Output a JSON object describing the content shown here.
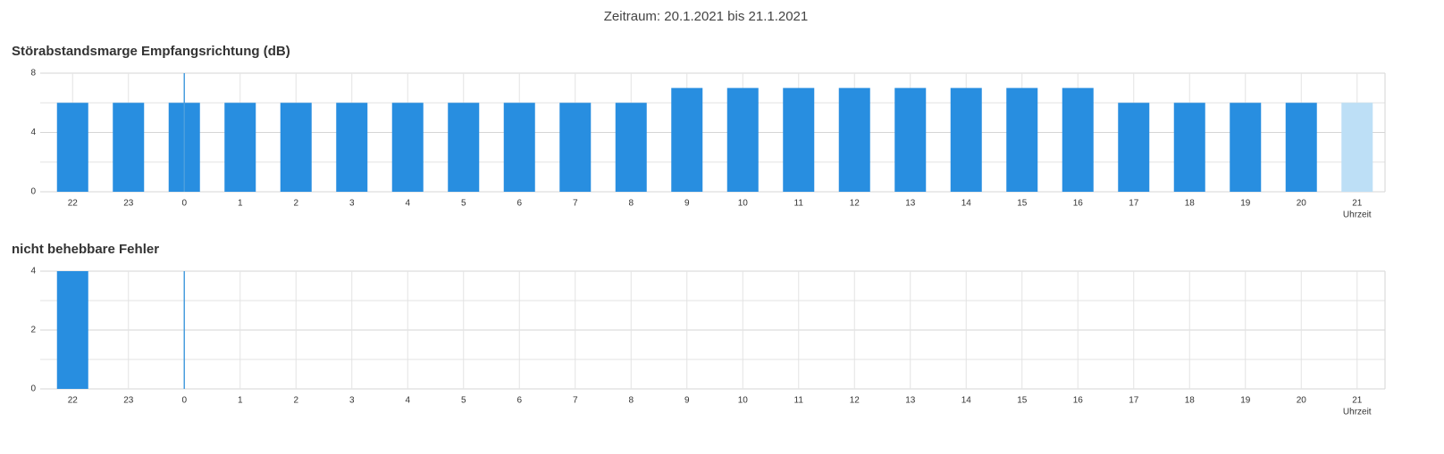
{
  "title": "Zeitraum: 20.1.2021 bis 21.1.2021",
  "chart_data": [
    {
      "type": "bar",
      "title": "Störabstandsmarge Empfangsrichtung (dB)",
      "x_label": "Uhrzeit",
      "categories": [
        "22",
        "23",
        "0",
        "1",
        "2",
        "3",
        "4",
        "5",
        "6",
        "7",
        "8",
        "9",
        "10",
        "11",
        "12",
        "13",
        "14",
        "15",
        "16",
        "17",
        "18",
        "19",
        "20",
        "21"
      ],
      "values": [
        6,
        6,
        6,
        6,
        6,
        6,
        6,
        6,
        6,
        6,
        6,
        7,
        7,
        7,
        7,
        7,
        7,
        7,
        7,
        6,
        6,
        6,
        6,
        6
      ],
      "colors": [
        "#288ee0",
        "#288ee0",
        "#288ee0",
        "#288ee0",
        "#288ee0",
        "#288ee0",
        "#288ee0",
        "#288ee0",
        "#288ee0",
        "#288ee0",
        "#288ee0",
        "#288ee0",
        "#288ee0",
        "#288ee0",
        "#288ee0",
        "#288ee0",
        "#288ee0",
        "#288ee0",
        "#288ee0",
        "#288ee0",
        "#288ee0",
        "#288ee0",
        "#288ee0",
        "#bddff6"
      ],
      "ylim": [
        0,
        8
      ],
      "yticks": [
        0,
        4,
        8
      ],
      "minor_yticks": [
        2,
        6
      ],
      "grid": true,
      "marker_at": "0",
      "marker_color": "#4a9ede"
    },
    {
      "type": "bar",
      "title": "nicht behebbare Fehler",
      "x_label": "Uhrzeit",
      "categories": [
        "22",
        "23",
        "0",
        "1",
        "2",
        "3",
        "4",
        "5",
        "6",
        "7",
        "8",
        "9",
        "10",
        "11",
        "12",
        "13",
        "14",
        "15",
        "16",
        "17",
        "18",
        "19",
        "20",
        "21"
      ],
      "values": [
        4,
        0,
        0,
        0,
        0,
        0,
        0,
        0,
        0,
        0,
        0,
        0,
        0,
        0,
        0,
        0,
        0,
        0,
        0,
        0,
        0,
        0,
        0,
        0
      ],
      "colors": [
        "#288ee0",
        "#288ee0",
        "#288ee0",
        "#288ee0",
        "#288ee0",
        "#288ee0",
        "#288ee0",
        "#288ee0",
        "#288ee0",
        "#288ee0",
        "#288ee0",
        "#288ee0",
        "#288ee0",
        "#288ee0",
        "#288ee0",
        "#288ee0",
        "#288ee0",
        "#288ee0",
        "#288ee0",
        "#288ee0",
        "#288ee0",
        "#288ee0",
        "#288ee0",
        "#bddff6"
      ],
      "ylim": [
        0,
        4
      ],
      "yticks": [
        0,
        2,
        4
      ],
      "minor_yticks": [
        1,
        3
      ],
      "grid": true,
      "marker_at": "0",
      "marker_color": "#4a9ede"
    }
  ]
}
